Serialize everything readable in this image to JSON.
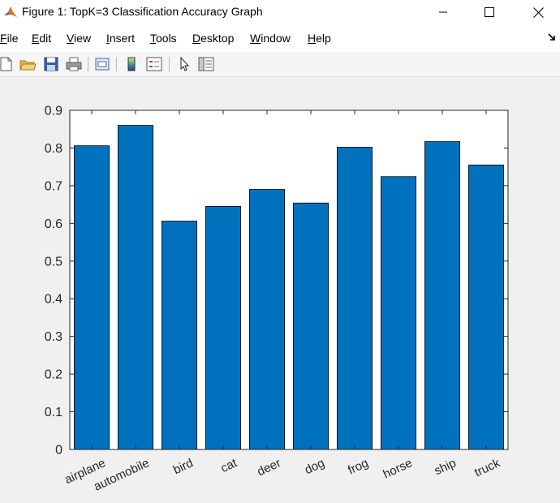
{
  "window": {
    "title": "Figure 1: TopK=3 Classification Accuracy Graph",
    "controls": [
      "minimize-icon",
      "maximize-icon",
      "close-icon"
    ]
  },
  "menu": {
    "items": [
      {
        "first": "F",
        "rest": "ile"
      },
      {
        "first": "E",
        "rest": "dit"
      },
      {
        "first": "V",
        "rest": "iew"
      },
      {
        "first": "I",
        "rest": "nsert"
      },
      {
        "first": "T",
        "rest": "ools"
      },
      {
        "first": "D",
        "rest": "esktop"
      },
      {
        "first": "W",
        "rest": "indow"
      },
      {
        "first": "H",
        "rest": "elp"
      }
    ]
  },
  "toolbar": {
    "icons": [
      "new-figure-icon",
      "open-file-icon",
      "save-icon",
      "print-icon",
      "print-preview-icon",
      "colorbar-icon",
      "legend-icon",
      "pointer-icon",
      "property-inspector-icon"
    ]
  },
  "colors": {
    "bar_fill": "#0072BD",
    "bar_edge": "#000000",
    "axes_bg": "#ffffff",
    "figure_bg": "#f0f0f0"
  },
  "chart_data": {
    "type": "bar",
    "categories": [
      "airplane",
      "automobile",
      "bird",
      "cat",
      "deer",
      "dog",
      "frog",
      "horse",
      "ship",
      "truck"
    ],
    "values": [
      0.806,
      0.86,
      0.606,
      0.645,
      0.69,
      0.654,
      0.802,
      0.724,
      0.817,
      0.755
    ],
    "yticks": [
      "0",
      "0.1",
      "0.2",
      "0.3",
      "0.4",
      "0.5",
      "0.6",
      "0.7",
      "0.8",
      "0.9"
    ],
    "ylim": [
      0,
      0.9
    ],
    "grid": false
  }
}
